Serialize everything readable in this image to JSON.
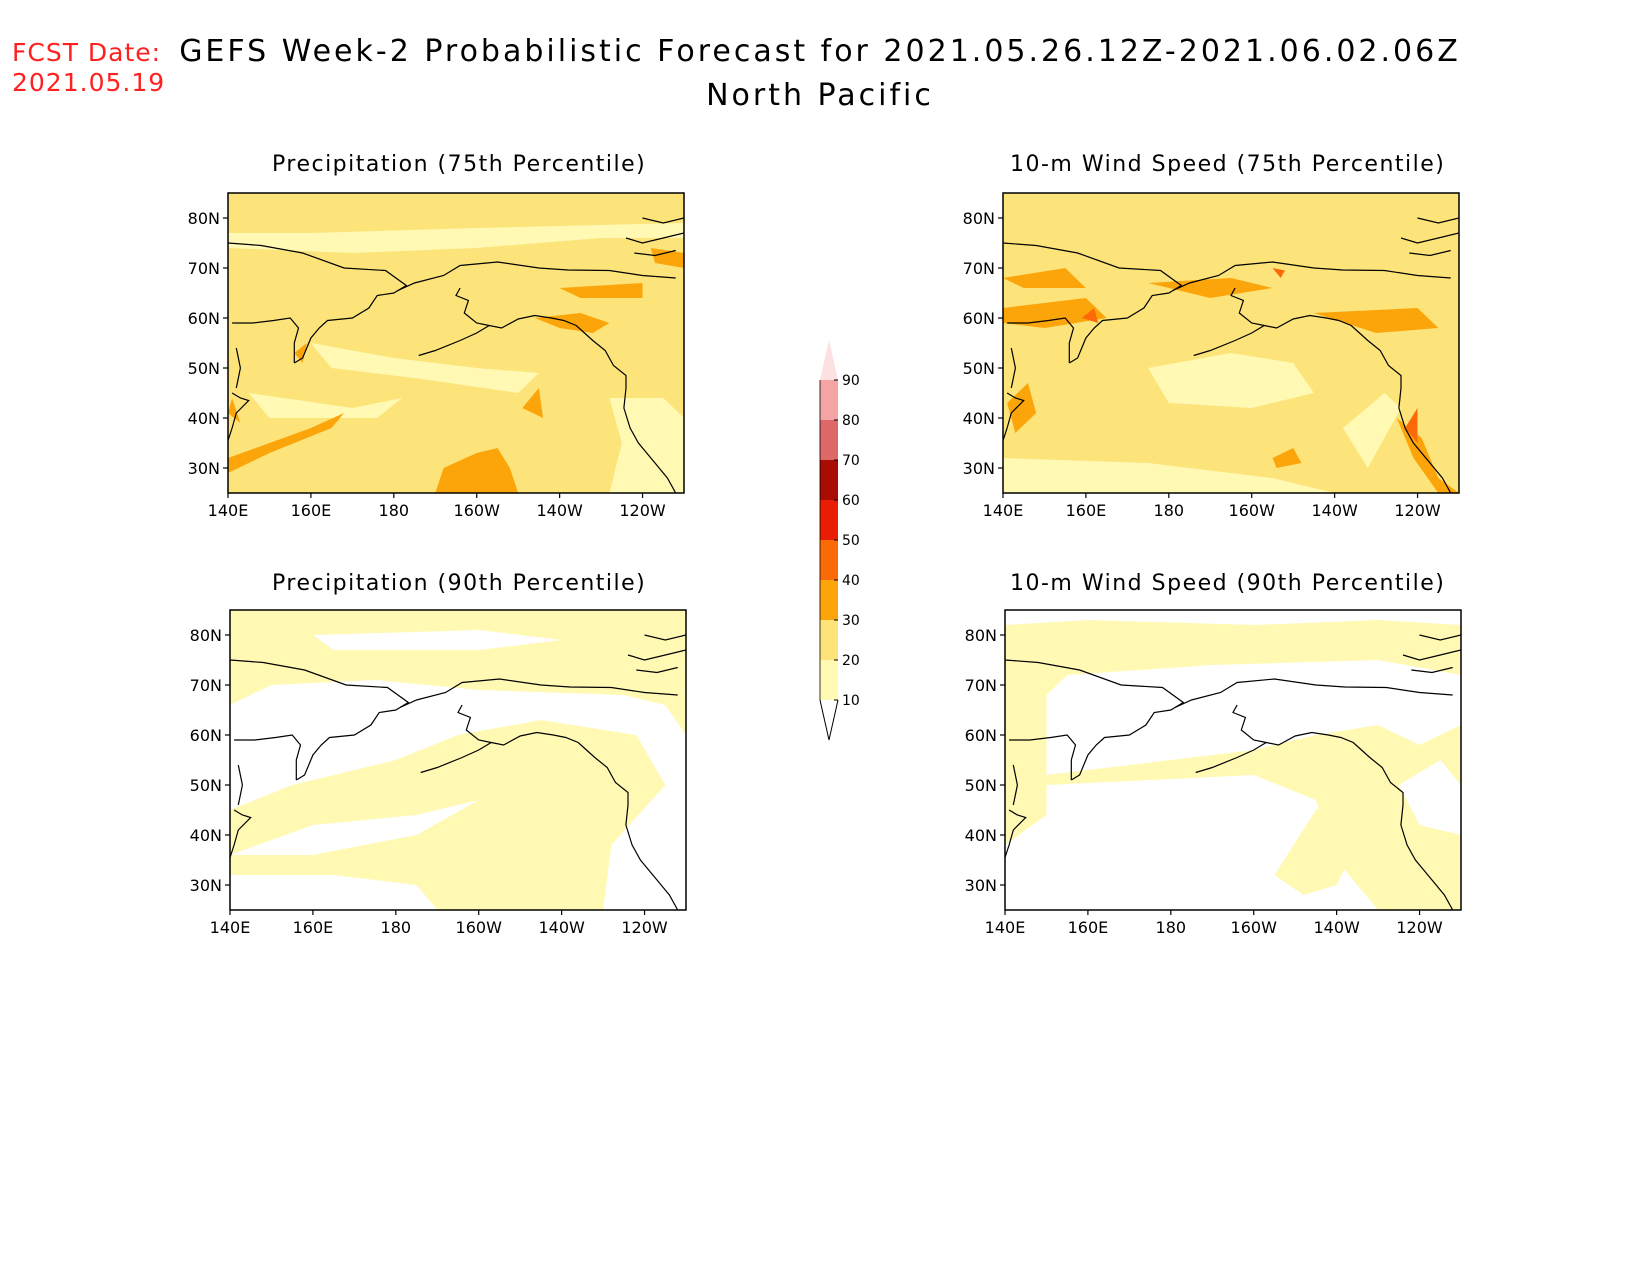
{
  "fcst": {
    "label": "FCST Date:",
    "date": "2021.05.19"
  },
  "title": {
    "line1": "GEFS Week-2 Probabilistic Forecast for 2021.05.26.12Z-2021.06.02.06Z",
    "line2": "North Pacific"
  },
  "axes": {
    "lat_labels": [
      "80N",
      "70N",
      "60N",
      "50N",
      "40N",
      "30N"
    ],
    "lon_labels": [
      "140E",
      "160E",
      "180",
      "160W",
      "140W",
      "120W"
    ]
  },
  "panels": [
    {
      "title": "Precipitation (75th Percentile)"
    },
    {
      "title": "10-m Wind Speed (75th Percentile)"
    },
    {
      "title": "Precipitation (90th Percentile)"
    },
    {
      "title": "10-m Wind Speed (90th Percentile)"
    }
  ],
  "colorbar": {
    "levels": [
      "10",
      "20",
      "30",
      "40",
      "50",
      "60",
      "70",
      "80",
      "90"
    ],
    "colors": [
      "#fff9b4",
      "#fde47a",
      "#fca50a",
      "#fc6a08",
      "#e81d04",
      "#a80c02",
      "#dc6868",
      "#f4a4a4",
      "#fde0e0"
    ]
  },
  "colors": {
    "lvl10": "#fff9b4",
    "lvl20": "#fde47a",
    "lvl30": "#fca50a",
    "lvl40": "#fc6a08",
    "lvl50": "#e81d04"
  }
}
